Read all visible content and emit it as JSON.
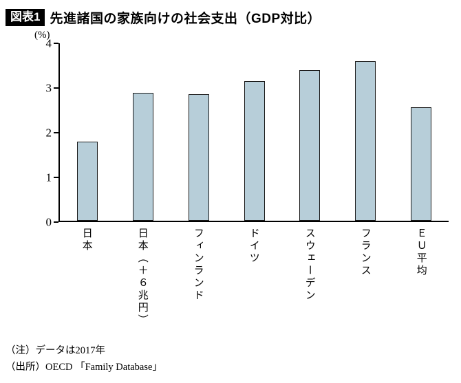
{
  "header": {
    "badge": "図表1",
    "title": "先進諸国の家族向けの社会支出（GDP対比）"
  },
  "chart_data": {
    "type": "bar",
    "title": "先進諸国の家族向けの社会支出（GDP対比）",
    "categories": [
      "日本",
      "日本（＋６兆円）",
      "フィンランド",
      "ドイツ",
      "スウェーデン",
      "フランス",
      "ＥＵ平均"
    ],
    "values": [
      1.78,
      2.88,
      2.85,
      3.15,
      3.4,
      3.6,
      2.56
    ],
    "unit_label": "(%)",
    "xlabel": "",
    "ylabel": "",
    "ylim": [
      0,
      4
    ],
    "yticks": [
      0,
      1,
      2,
      3,
      4
    ],
    "grid": false,
    "legend": "none",
    "bar_color": "#b7ced9",
    "bar_border": "#1a1a1a"
  },
  "notes": [
    "（注）データは2017年",
    "（出所）OECD 「Family Database」"
  ]
}
